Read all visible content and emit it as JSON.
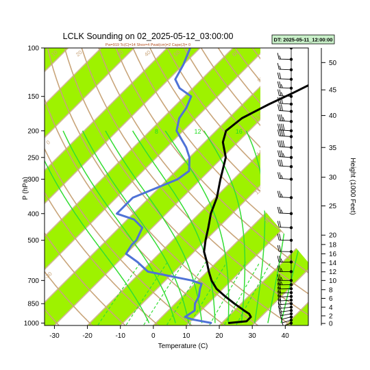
{
  "chart_data": {
    "type": "line",
    "title": "LCLK Sounding on 02_2025-05-12_03:00:00",
    "subtitle": "Pw=919 Tc(C)=14 Shox=4 Pwat(cm)=2 Cape(J)= 0",
    "valid_label": "DT: 2025-05-11_12:00:00",
    "xlabel": "Temperature (C)",
    "ylabel": "P (hPa)",
    "y2label": "Height (1000 Feet)",
    "xlim": [
      -33,
      47
    ],
    "ylim": [
      1020,
      100
    ],
    "x_ticks": [
      "-30",
      "-20",
      "-10",
      "0",
      "10",
      "20",
      "30",
      "40"
    ],
    "p_ticks": [
      {
        "p": 100,
        "label": "100"
      },
      {
        "p": 150,
        "label": "150"
      },
      {
        "p": 200,
        "label": "200"
      },
      {
        "p": 250,
        "label": "250"
      },
      {
        "p": 300,
        "label": "300"
      },
      {
        "p": 400,
        "label": "400"
      },
      {
        "p": 500,
        "label": "500"
      },
      {
        "p": 700,
        "label": "700"
      },
      {
        "p": 850,
        "label": "850"
      },
      {
        "p": 1000,
        "label": "1000"
      }
    ],
    "height_ticks": [
      {
        "p": 1003,
        "label": "0"
      },
      {
        "p": 941,
        "label": "2"
      },
      {
        "p": 875,
        "label": "4"
      },
      {
        "p": 813,
        "label": "6"
      },
      {
        "p": 756,
        "label": "8"
      },
      {
        "p": 700,
        "label": "10"
      },
      {
        "p": 651,
        "label": "12"
      },
      {
        "p": 604,
        "label": "14"
      },
      {
        "p": 560,
        "label": "16"
      },
      {
        "p": 518,
        "label": "18"
      },
      {
        "p": 479,
        "label": "20"
      },
      {
        "p": 375,
        "label": "25"
      },
      {
        "p": 295,
        "label": "30"
      },
      {
        "p": 230,
        "label": "35"
      },
      {
        "p": 176,
        "label": "40"
      },
      {
        "p": 142,
        "label": "45"
      },
      {
        "p": 113,
        "label": "50"
      }
    ],
    "mixing_ratio_labels": [
      "8",
      "12",
      "16",
      "20",
      "24",
      "28",
      "32"
    ],
    "dry_adiabat_labels": [
      "-30",
      "0",
      "10",
      "20",
      "30",
      "40",
      "50",
      "60",
      "90",
      "130",
      "140",
      "150",
      "160"
    ],
    "series": [
      {
        "name": "",
        "color": "#000000",
        "points": [
          [
            1000,
            22.0
          ],
          [
            985,
            27.0
          ],
          [
            950,
            27.0
          ],
          [
            925,
            25.5
          ],
          [
            900,
            23.0
          ],
          [
            850,
            18.0
          ],
          [
            800,
            13.0
          ],
          [
            750,
            8.0
          ],
          [
            700,
            4.0
          ],
          [
            650,
            0.5
          ],
          [
            600,
            -3.0
          ],
          [
            550,
            -7.0
          ],
          [
            500,
            -10.0
          ],
          [
            450,
            -13.0
          ],
          [
            400,
            -16.5
          ],
          [
            350,
            -19.5
          ],
          [
            300,
            -24.0
          ],
          [
            250,
            -29.0
          ],
          [
            220,
            -34.5
          ],
          [
            200,
            -37.0
          ],
          [
            180,
            -36.0
          ],
          [
            160,
            -32.0
          ],
          [
            145,
            -28.0
          ],
          [
            130,
            -24.0
          ],
          [
            115,
            -19.0
          ],
          [
            100,
            -13.0
          ]
        ]
      },
      {
        "name": "",
        "color": "#4f72d6",
        "points": [
          [
            1000,
            17.0
          ],
          [
            970,
            10.0
          ],
          [
            950,
            7.0
          ],
          [
            900,
            8.0
          ],
          [
            850,
            6.0
          ],
          [
            800,
            5.0
          ],
          [
            750,
            3.0
          ],
          [
            720,
            2.0
          ],
          [
            700,
            -2.0
          ],
          [
            650,
            -18.0
          ],
          [
            600,
            -24.0
          ],
          [
            560,
            -30.0
          ],
          [
            520,
            -31.0
          ],
          [
            500,
            -31.0
          ],
          [
            450,
            -33.0
          ],
          [
            420,
            -38.0
          ],
          [
            400,
            -45.0
          ],
          [
            350,
            -45.0
          ],
          [
            300,
            -37.0
          ],
          [
            280,
            -36.0
          ],
          [
            250,
            -40.0
          ],
          [
            230,
            -44.0
          ],
          [
            200,
            -52.0
          ],
          [
            180,
            -55.0
          ],
          [
            165,
            -56.0
          ],
          [
            150,
            -58.0
          ],
          [
            140,
            -64.0
          ],
          [
            130,
            -68.0
          ],
          [
            115,
            -70.0
          ],
          [
            100,
            -73.0
          ]
        ]
      }
    ],
    "wind_profile": [
      {
        "p": 1000,
        "speed": 5,
        "dir": 200
      },
      {
        "p": 975,
        "speed": 10,
        "dir": 210
      },
      {
        "p": 950,
        "speed": 10,
        "dir": 220
      },
      {
        "p": 925,
        "speed": 15,
        "dir": 230
      },
      {
        "p": 900,
        "speed": 15,
        "dir": 240
      },
      {
        "p": 875,
        "speed": 15,
        "dir": 245
      },
      {
        "p": 850,
        "speed": 20,
        "dir": 250
      },
      {
        "p": 825,
        "speed": 20,
        "dir": 255
      },
      {
        "p": 800,
        "speed": 20,
        "dir": 260
      },
      {
        "p": 775,
        "speed": 20,
        "dir": 260
      },
      {
        "p": 750,
        "speed": 20,
        "dir": 265
      },
      {
        "p": 725,
        "speed": 25,
        "dir": 265
      },
      {
        "p": 700,
        "speed": 25,
        "dir": 270
      },
      {
        "p": 650,
        "speed": 25,
        "dir": 270
      },
      {
        "p": 600,
        "speed": 25,
        "dir": 270
      },
      {
        "p": 550,
        "speed": 20,
        "dir": 275
      },
      {
        "p": 500,
        "speed": 20,
        "dir": 275
      },
      {
        "p": 450,
        "speed": 20,
        "dir": 280
      },
      {
        "p": 400,
        "speed": 25,
        "dir": 280
      },
      {
        "p": 350,
        "speed": 25,
        "dir": 280
      },
      {
        "p": 300,
        "speed": 25,
        "dir": 285
      },
      {
        "p": 270,
        "speed": 30,
        "dir": 285
      },
      {
        "p": 250,
        "speed": 35,
        "dir": 285
      },
      {
        "p": 230,
        "speed": 40,
        "dir": 285
      },
      {
        "p": 210,
        "speed": 40,
        "dir": 285
      },
      {
        "p": 200,
        "speed": 40,
        "dir": 285
      },
      {
        "p": 185,
        "speed": 35,
        "dir": 285
      },
      {
        "p": 170,
        "speed": 30,
        "dir": 285
      },
      {
        "p": 160,
        "speed": 30,
        "dir": 285
      },
      {
        "p": 150,
        "speed": 25,
        "dir": 285
      },
      {
        "p": 140,
        "speed": 25,
        "dir": 280
      },
      {
        "p": 130,
        "speed": 20,
        "dir": 280
      },
      {
        "p": 120,
        "speed": 15,
        "dir": 280
      },
      {
        "p": 110,
        "speed": 15,
        "dir": 275
      },
      {
        "p": 100,
        "speed": 15,
        "dir": 275
      }
    ],
    "colors": {
      "band": "#9ef200",
      "isotherm": "#d0b892",
      "dry_adiabat": "#c9a57a",
      "moist_adiabat": "#33dd33",
      "mixing_ratio": "#33dd33",
      "temperature": "#000000",
      "dewpoint": "#4f72d6"
    },
    "grid": true,
    "legend": "none"
  }
}
